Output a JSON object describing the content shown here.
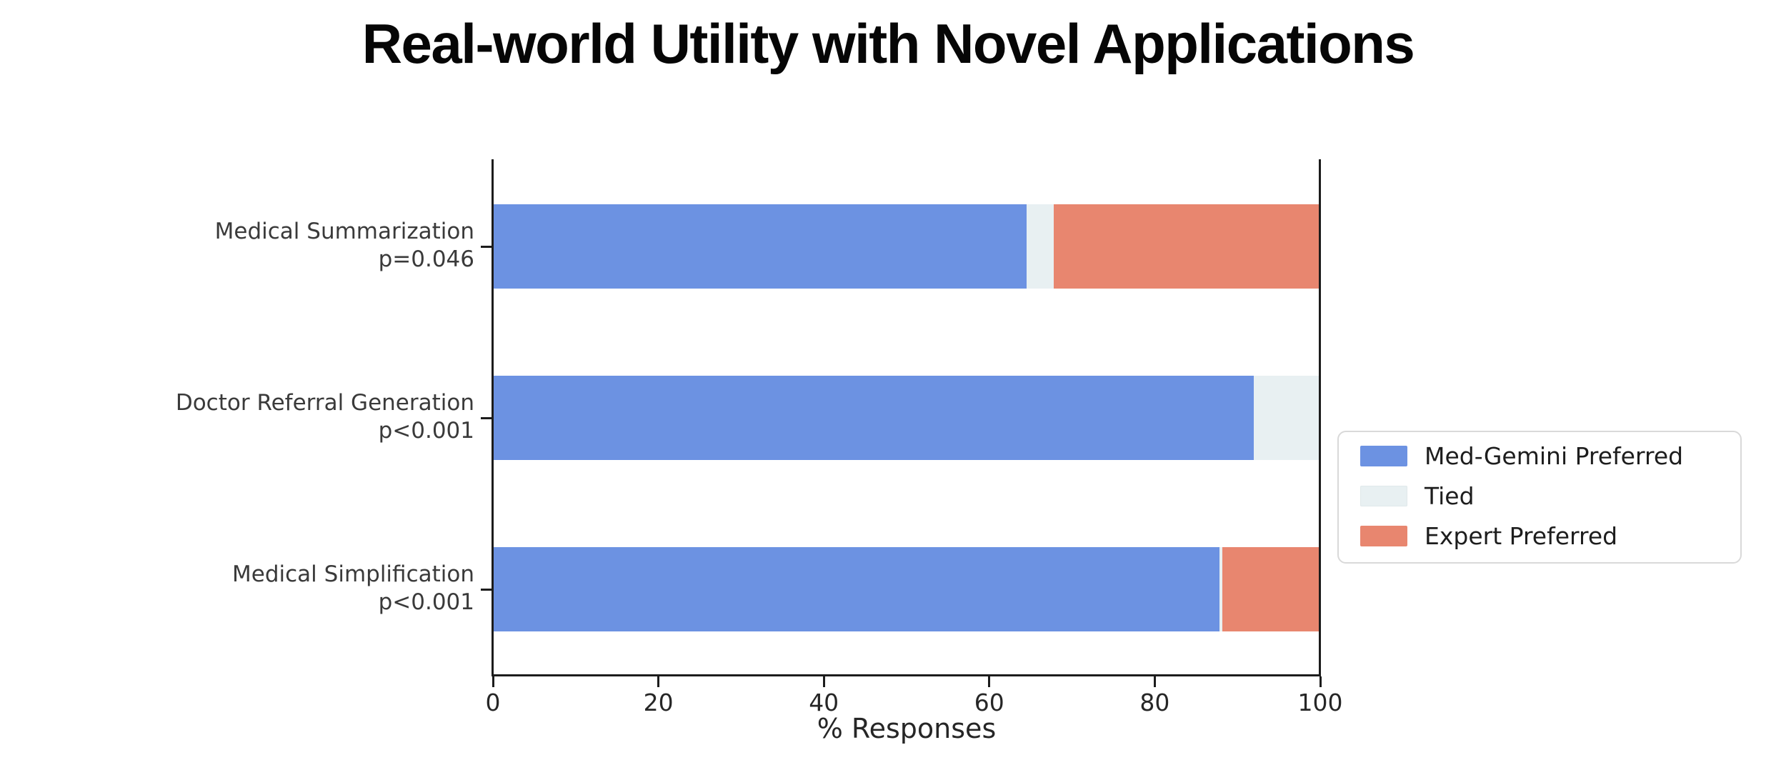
{
  "title": "Real-world Utility with Novel Applications",
  "chart_data": {
    "type": "bar",
    "orientation": "horizontal",
    "stacked": true,
    "title": "Real-world Utility with Novel Applications",
    "categories": [
      "Medical Summarization",
      "Doctor Referral Generation",
      "Medical Simplification"
    ],
    "category_pvalues": [
      "p=0.046",
      "p<0.001",
      "p<0.001"
    ],
    "series": [
      {
        "name": "Med-Gemini Preferred",
        "color": "#6c92e2",
        "values": [
          64.5,
          92.0,
          87.8
        ]
      },
      {
        "name": "Tied",
        "color": "#e8f0f2",
        "values": [
          3.3,
          8.0,
          0.4
        ]
      },
      {
        "name": "Expert Preferred",
        "color": "#e8866f",
        "values": [
          32.2,
          0.0,
          11.8
        ]
      }
    ],
    "xlabel": "% Responses",
    "xlim": [
      0,
      100
    ],
    "x_ticks": [
      0,
      20,
      40,
      60,
      80,
      100
    ],
    "grid": false,
    "legend_position": "center-right",
    "axis_color": "#1c1c1c"
  }
}
